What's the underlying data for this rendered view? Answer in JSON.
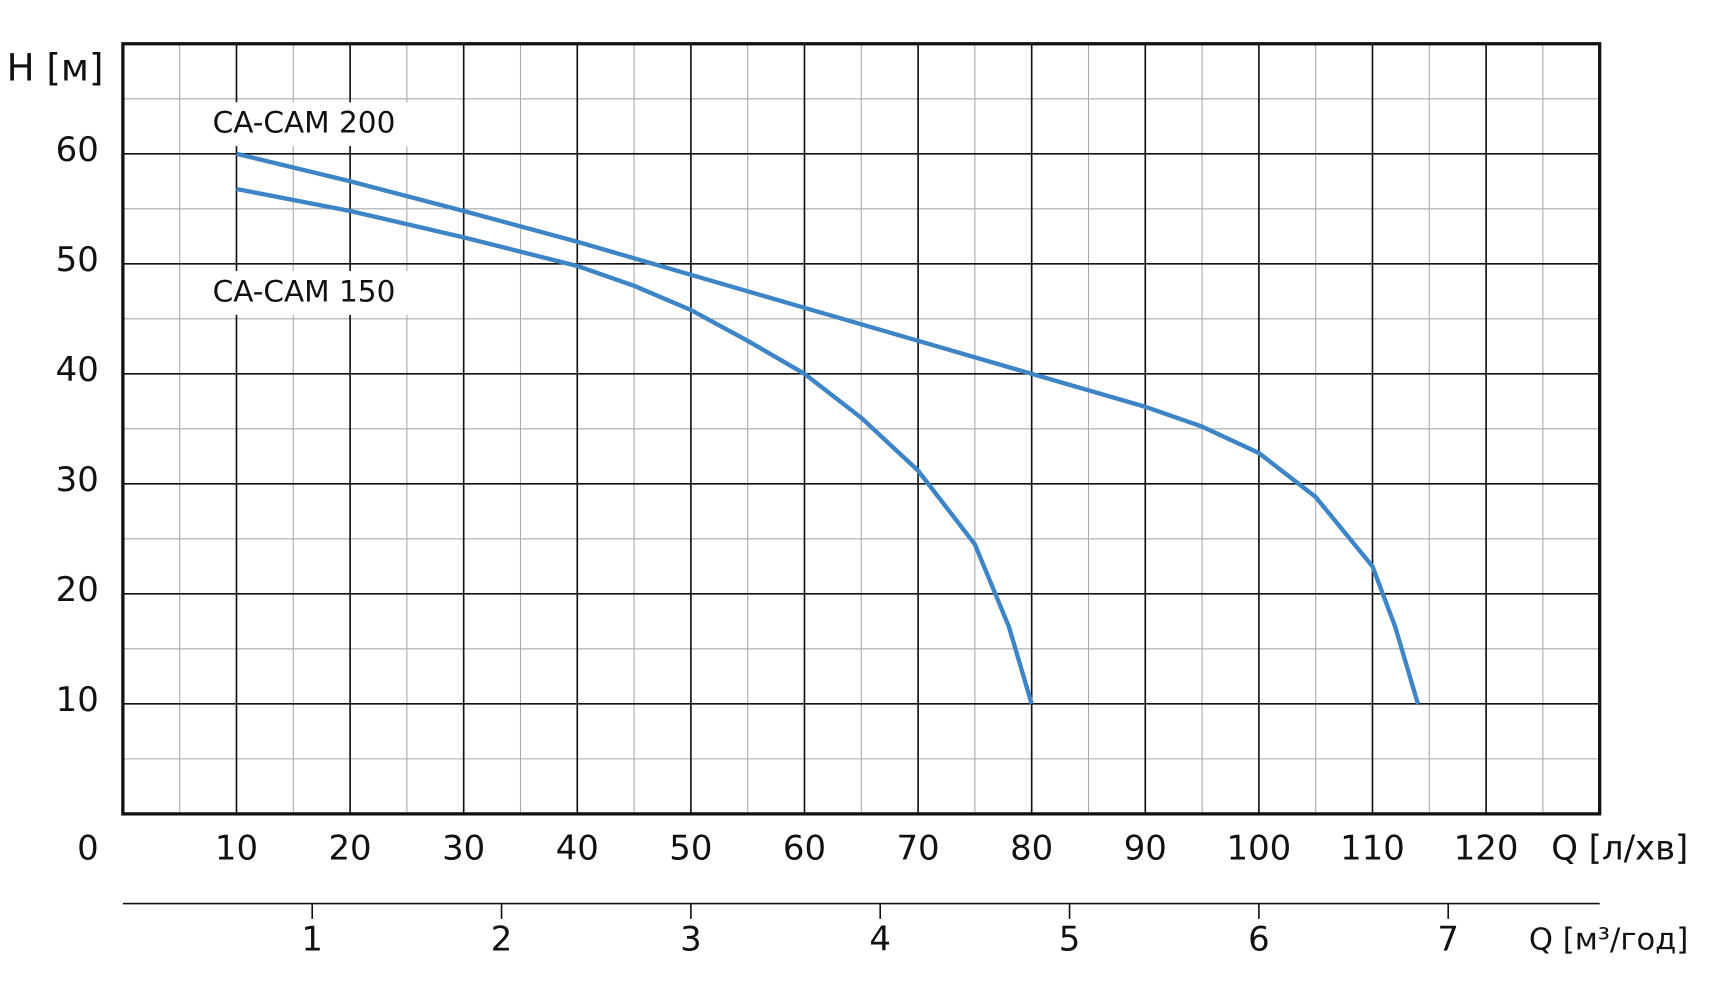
{
  "chart_data": {
    "type": "line",
    "ylabel": "H [м]",
    "xlabel": "Q [л/хв]",
    "x2label": "Q [м³/год]",
    "xlim": [
      0,
      130
    ],
    "xticks": [
      0,
      10,
      20,
      30,
      40,
      50,
      60,
      70,
      80,
      90,
      100,
      110,
      120
    ],
    "ylim": [
      0,
      70
    ],
    "yticks": [
      10,
      20,
      30,
      40,
      50,
      60
    ],
    "x2lim": [
      0,
      7.8
    ],
    "x2ticks": [
      1,
      2,
      3,
      4,
      5,
      6,
      7
    ],
    "grid": true,
    "series": [
      {
        "name": "CA-CAM 200",
        "color": "#3d85c6",
        "x": [
          10,
          20,
          30,
          40,
          50,
          60,
          70,
          80,
          90,
          95,
          100,
          105,
          110,
          112,
          114
        ],
        "values": [
          60,
          57.5,
          54.8,
          52,
          49,
          46,
          43,
          40,
          37,
          35.2,
          32.8,
          28.8,
          22.5,
          17,
          10
        ]
      },
      {
        "name": "CA-CAM 150",
        "color": "#3d85c6",
        "x": [
          10,
          20,
          30,
          40,
          45,
          50,
          55,
          60,
          65,
          70,
          75,
          78,
          80
        ],
        "values": [
          56.8,
          54.8,
          52.4,
          49.8,
          48,
          45.8,
          43,
          40,
          36,
          31.2,
          24.5,
          17,
          10
        ]
      }
    ]
  }
}
